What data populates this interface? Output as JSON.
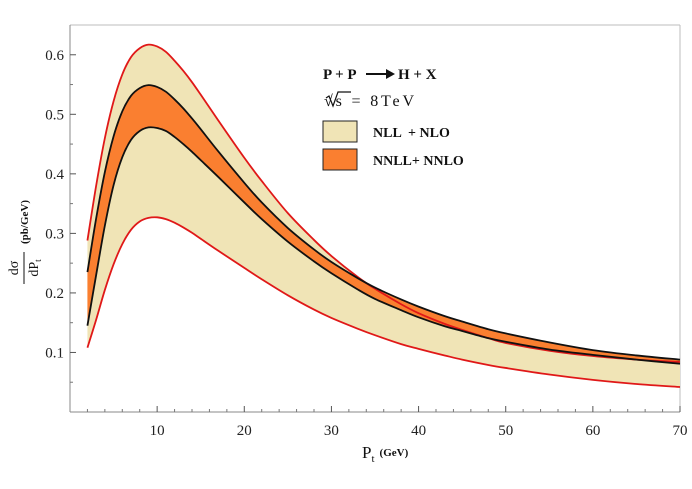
{
  "chart_data": {
    "type": "area",
    "title": "",
    "process": {
      "lhs": "P + P",
      "rhs": "H + X"
    },
    "energy": {
      "label": "√s = 8TeV"
    },
    "xlabel": {
      "main": "P",
      "sub": "t",
      "unit": "(GeV)"
    },
    "ylabel": {
      "num": "dσ",
      "den_main": "dP",
      "den_sub": "t",
      "unit": "(pb/GeV)"
    },
    "xlim": [
      0,
      70
    ],
    "ylim": [
      0,
      0.65
    ],
    "xticks": [
      10,
      20,
      30,
      40,
      50,
      60,
      70
    ],
    "xtick_labels": [
      "10",
      "20",
      "30",
      "40",
      "50",
      "60",
      "70"
    ],
    "yticks": [
      0.1,
      0.2,
      0.3,
      0.4,
      0.5,
      0.6
    ],
    "ytick_labels": [
      "0.1",
      "0.2",
      "0.3",
      "0.4",
      "0.5",
      "0.6"
    ],
    "legend_position": "top-right",
    "x": [
      2,
      3,
      4,
      5,
      6,
      7,
      8,
      9,
      10,
      11,
      12,
      13,
      14,
      15,
      17,
      20,
      22,
      25,
      28,
      30,
      33,
      35,
      38,
      40,
      43,
      45,
      48,
      50,
      55,
      60,
      65,
      70
    ],
    "series": [
      {
        "name": "NLL  + NLO",
        "color": "#f0e4b6",
        "edge_color": "#e01818",
        "lower": [
          0.108,
          0.155,
          0.205,
          0.248,
          0.282,
          0.306,
          0.32,
          0.326,
          0.327,
          0.324,
          0.318,
          0.31,
          0.301,
          0.291,
          0.271,
          0.242,
          0.223,
          0.196,
          0.172,
          0.158,
          0.14,
          0.129,
          0.114,
          0.106,
          0.095,
          0.088,
          0.079,
          0.074,
          0.063,
          0.054,
          0.047,
          0.042
        ],
        "upper": [
          0.288,
          0.38,
          0.46,
          0.522,
          0.567,
          0.596,
          0.611,
          0.617,
          0.614,
          0.605,
          0.59,
          0.573,
          0.554,
          0.533,
          0.49,
          0.427,
          0.388,
          0.334,
          0.289,
          0.262,
          0.227,
          0.207,
          0.181,
          0.166,
          0.148,
          0.138,
          0.124,
          0.116,
          0.103,
          0.094,
          0.088,
          0.084
        ]
      },
      {
        "name": "NNLL+ NNLO",
        "color": "#fa7f30",
        "edge_color": "#111111",
        "lower": [
          0.145,
          0.23,
          0.313,
          0.381,
          0.428,
          0.457,
          0.472,
          0.478,
          0.477,
          0.472,
          0.462,
          0.45,
          0.437,
          0.423,
          0.395,
          0.352,
          0.324,
          0.286,
          0.253,
          0.233,
          0.206,
          0.19,
          0.171,
          0.159,
          0.144,
          0.136,
          0.124,
          0.118,
          0.105,
          0.096,
          0.088,
          0.081
        ],
        "upper": [
          0.235,
          0.325,
          0.403,
          0.463,
          0.505,
          0.531,
          0.544,
          0.549,
          0.546,
          0.538,
          0.525,
          0.51,
          0.493,
          0.475,
          0.438,
          0.385,
          0.352,
          0.309,
          0.273,
          0.252,
          0.225,
          0.209,
          0.189,
          0.177,
          0.161,
          0.152,
          0.139,
          0.132,
          0.117,
          0.104,
          0.095,
          0.088
        ]
      }
    ]
  }
}
